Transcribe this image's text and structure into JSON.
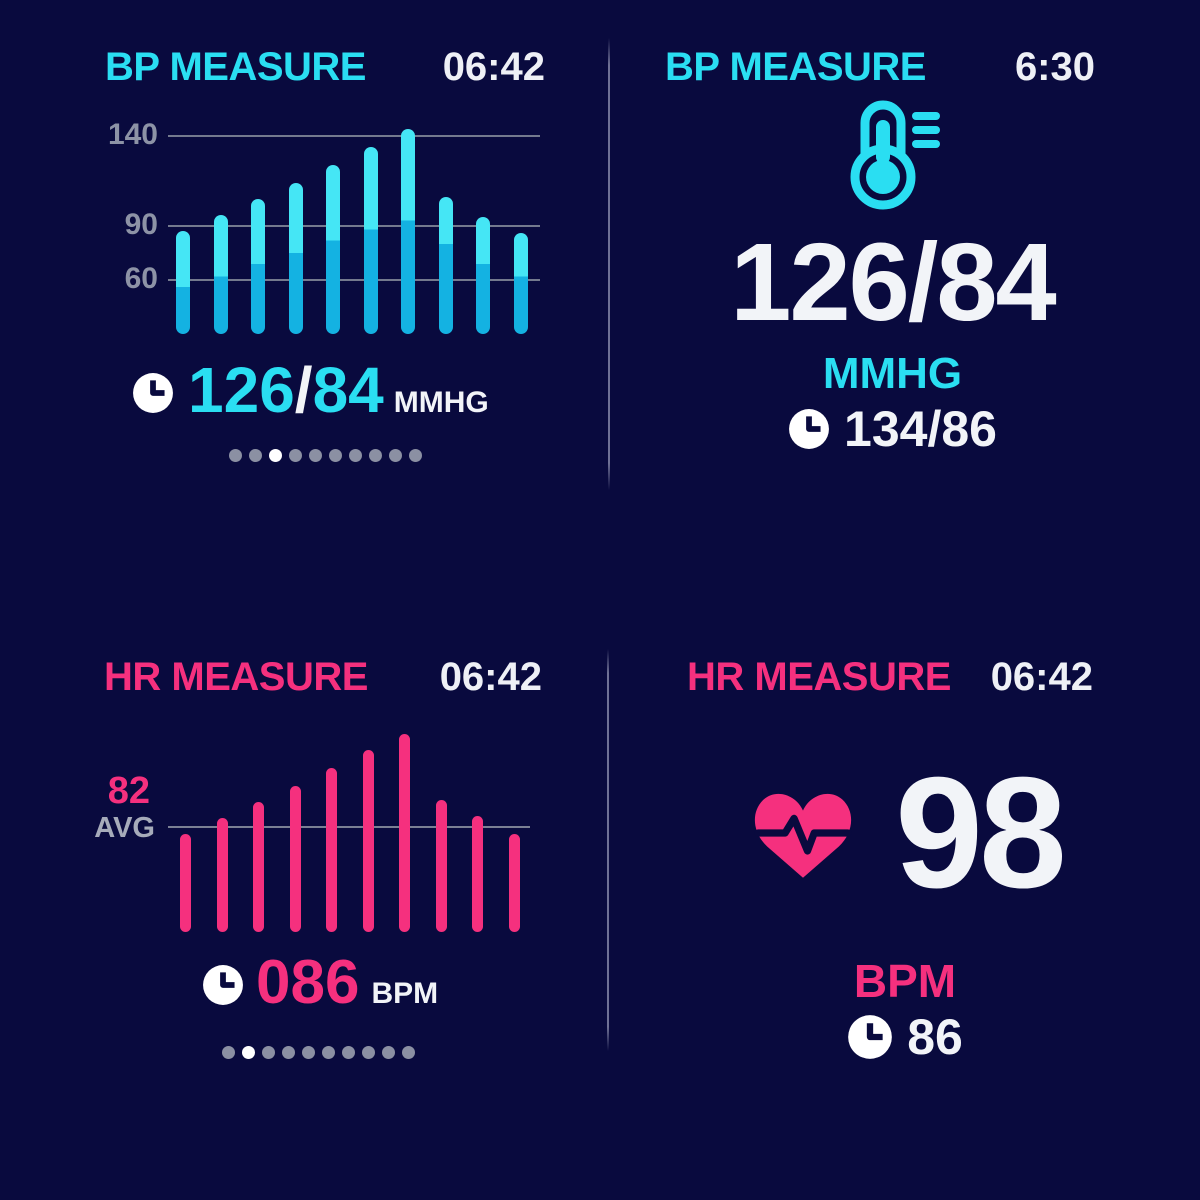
{
  "screen": {
    "bg": "#090a3e",
    "accent_cyan": "#2adef2",
    "accent_pink": "#f5307e",
    "text_white": "#f2f4f8",
    "gray_label": "#8d93a6"
  },
  "panels": {
    "bp_chart": {
      "title": "BP MEASURE",
      "time": "06:42",
      "reading": {
        "systolic": "126",
        "slash": "/",
        "diastolic": "84",
        "unit": "MMHG"
      },
      "pagination": {
        "count": 10,
        "active_index": 2
      }
    },
    "bp_reading": {
      "title": "BP MEASURE",
      "time": "6:30",
      "value": "126/84",
      "unit": "MMHG",
      "last": "134/86"
    },
    "hr_chart": {
      "title": "HR MEASURE",
      "time": "06:42",
      "avg_value": "82",
      "avg_label": "AVG",
      "reading": {
        "value": "086",
        "unit": "BPM"
      },
      "pagination": {
        "count": 10,
        "active_index": 1
      }
    },
    "hr_reading": {
      "title": "HR MEASURE",
      "time": "06:42",
      "value": "98",
      "unit": "BPM",
      "last": "86"
    }
  },
  "chart_data": [
    {
      "id": "bp_bars",
      "type": "bar",
      "title": "BP MEASURE",
      "time": "06:42",
      "yticks": [
        140,
        90,
        60
      ],
      "baseline_value": 30,
      "grid": true,
      "legend": false,
      "series": [
        {
          "name": "systolic",
          "color": "#45e6f5",
          "values": [
            87,
            96,
            105,
            114,
            124,
            134,
            144,
            106,
            95,
            86
          ]
        },
        {
          "name": "diastolic",
          "color": "#14b2e2",
          "values": [
            56,
            62,
            69,
            75,
            82,
            88,
            93,
            80,
            69,
            62
          ]
        }
      ],
      "latest": {
        "systolic": 126,
        "diastolic": 84,
        "unit": "MMHG"
      }
    },
    {
      "id": "hr_bars",
      "type": "bar",
      "title": "HR MEASURE",
      "time": "06:42",
      "values": [
        78,
        86,
        94,
        102,
        111,
        120,
        128,
        95,
        87,
        78
      ],
      "avg": 82,
      "avg_label": "AVG",
      "bar_color": "#f5307e",
      "baseline_value": 30,
      "grid": false,
      "legend": false,
      "latest": {
        "value": "086",
        "unit": "BPM"
      }
    }
  ]
}
